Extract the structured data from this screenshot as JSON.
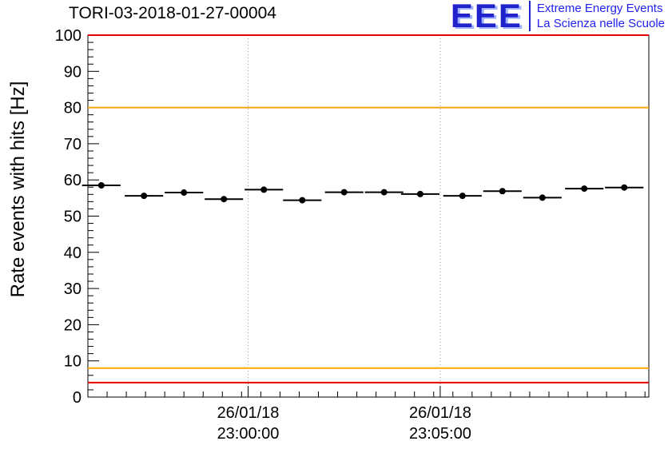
{
  "header": {
    "title": "TORI-03-2018-01-27-00004"
  },
  "logo": {
    "acronym": "EEE",
    "tagline_line1": "Extreme Energy Events",
    "tagline_line2": "La Scienza nelle Scuole",
    "blue": "#2222cc"
  },
  "chart_data": {
    "type": "scatter",
    "title": "TORI-03-2018-01-27-00004",
    "xlabel": "",
    "ylabel": "Rate events with hits [Hz]",
    "ylim": [
      0,
      100
    ],
    "xlim": [
      0,
      14.6
    ],
    "y_tick_step": 10,
    "y_minor_tick_step": 2,
    "x_minor_tick_step": 0.5,
    "grid": "dotted vertical gridlines at major x ticks",
    "legend": "none",
    "x_ticks": [
      {
        "x": 4.17,
        "label": [
          "26/01/18",
          "23:00:00"
        ]
      },
      {
        "x": 9.17,
        "label": [
          "26/01/18",
          "23:05:00"
        ]
      }
    ],
    "guide_lines": [
      {
        "y": 100,
        "color": "#e80000",
        "width": 2
      },
      {
        "y": 80,
        "color": "#ffa500",
        "width": 2
      },
      {
        "y": 8,
        "color": "#ffa500",
        "width": 2
      },
      {
        "y": 4,
        "color": "#e80000",
        "width": 2
      }
    ],
    "series": [
      {
        "name": "rate-events-with-hits",
        "marker": "circle",
        "color": "#000000",
        "points": [
          {
            "x": 0.35,
            "y": 58.5,
            "xerr": 0.5,
            "yerr": 0.8
          },
          {
            "x": 1.46,
            "y": 55.6,
            "xerr": 0.5,
            "yerr": 0.8
          },
          {
            "x": 2.5,
            "y": 56.5,
            "xerr": 0.5,
            "yerr": 0.8
          },
          {
            "x": 3.54,
            "y": 54.7,
            "xerr": 0.5,
            "yerr": 0.8
          },
          {
            "x": 4.58,
            "y": 57.3,
            "xerr": 0.5,
            "yerr": 0.8
          },
          {
            "x": 5.58,
            "y": 54.4,
            "xerr": 0.5,
            "yerr": 0.8
          },
          {
            "x": 6.67,
            "y": 56.6,
            "xerr": 0.5,
            "yerr": 0.8
          },
          {
            "x": 7.71,
            "y": 56.6,
            "xerr": 0.5,
            "yerr": 0.8
          },
          {
            "x": 8.65,
            "y": 56.1,
            "xerr": 0.5,
            "yerr": 0.8
          },
          {
            "x": 9.75,
            "y": 55.6,
            "xerr": 0.5,
            "yerr": 0.8
          },
          {
            "x": 10.79,
            "y": 56.9,
            "xerr": 0.5,
            "yerr": 0.8
          },
          {
            "x": 11.83,
            "y": 55.1,
            "xerr": 0.5,
            "yerr": 0.8
          },
          {
            "x": 12.92,
            "y": 57.6,
            "xerr": 0.5,
            "yerr": 0.8
          },
          {
            "x": 13.96,
            "y": 57.9,
            "xerr": 0.5,
            "yerr": 0.8
          }
        ]
      }
    ]
  }
}
